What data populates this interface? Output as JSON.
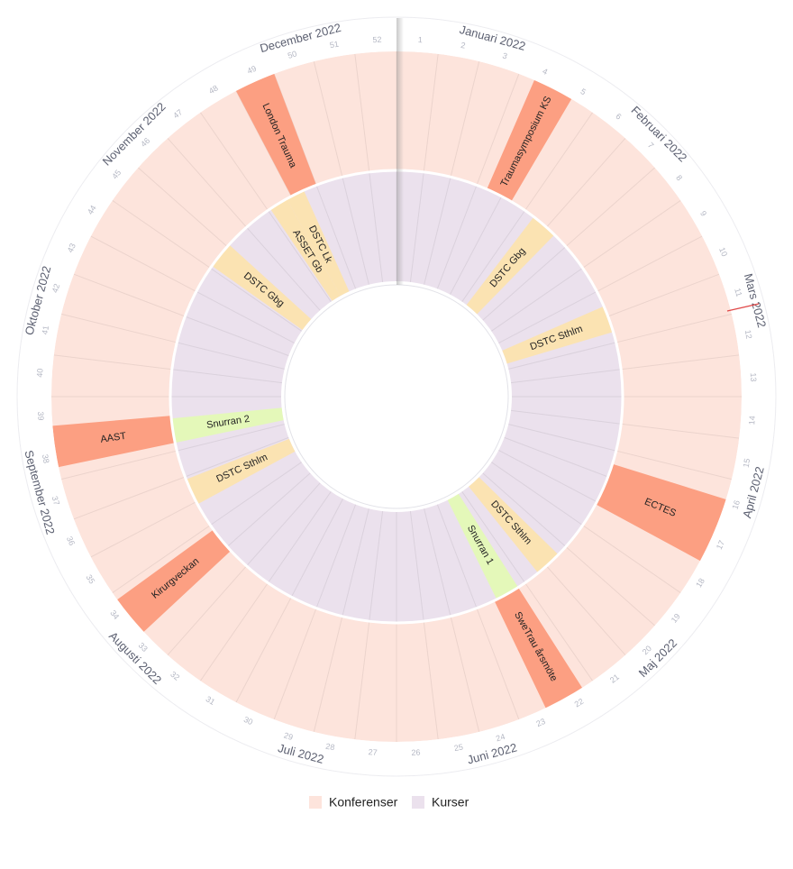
{
  "rings": [
    {
      "name": "Konferenser",
      "color": "#fde4dc",
      "event_color": "#fc9f82"
    },
    {
      "name": "Kurser",
      "color": "#ebe1ed"
    }
  ],
  "months": [
    "Januari 2022",
    "Februari 2022",
    "Mars 2022",
    "April 2022",
    "Maj 2022",
    "Juni 2022",
    "Juli 2022",
    "Augusti 2022",
    "September 2022",
    "Oktober 2022",
    "November 2022",
    "December 2022"
  ],
  "weeks": [
    1,
    2,
    3,
    4,
    5,
    6,
    7,
    8,
    9,
    10,
    11,
    12,
    13,
    14,
    15,
    16,
    17,
    18,
    19,
    20,
    21,
    22,
    23,
    24,
    25,
    26,
    27,
    28,
    29,
    30,
    31,
    32,
    33,
    34,
    35,
    36,
    37,
    38,
    39,
    40,
    41,
    42,
    43,
    44,
    45,
    46,
    47,
    48,
    49,
    50,
    51,
    52
  ],
  "conferences": [
    {
      "label": "Traumasymposium KS",
      "start": 3.4,
      "end": 4.4
    },
    {
      "label": "ECTES",
      "start": 15.5,
      "end": 17.1
    },
    {
      "label": "SweTrau årsmöte",
      "start": 21.3,
      "end": 22.3
    },
    {
      "label": "Kirurgveckan",
      "start": 32.8,
      "end": 33.8
    },
    {
      "label": "AAST",
      "start": 37.3,
      "end": 38.3
    },
    {
      "label": "London Trauma",
      "start": 48,
      "end": 49
    }
  ],
  "courses": [
    {
      "label": "DSTC Gbg",
      "start": 5.4,
      "end": 6.4,
      "color": "#fbe3b2"
    },
    {
      "label": "DSTC Sthlm",
      "start": 9.6,
      "end": 10.6,
      "color": "#fbe3b2"
    },
    {
      "label": "DSTC Sthlm",
      "start": 19.4,
      "end": 20.4,
      "color": "#fbe3b2"
    },
    {
      "label": "Snurran 1",
      "start": 21.3,
      "end": 22.2,
      "color": "#e4f8b9"
    },
    {
      "label": "DSTC Sthlm",
      "start": 34.9,
      "end": 35.9,
      "color": "#fbe3b2"
    },
    {
      "label": "Snurran 2",
      "start": 37.3,
      "end": 38.2,
      "color": "#e4f8b9"
    },
    {
      "label": "DSTC Gbg",
      "start": 44.1,
      "end": 45.1,
      "color": "#fbe3b2"
    },
    {
      "label": "ASSET Gb",
      "start": 47.1,
      "end": 47.8,
      "color": "#fbe3b2"
    },
    {
      "label": "DSTC Lk",
      "start": 47.8,
      "end": 48.5,
      "color": "#fbe3b2"
    }
  ]
}
